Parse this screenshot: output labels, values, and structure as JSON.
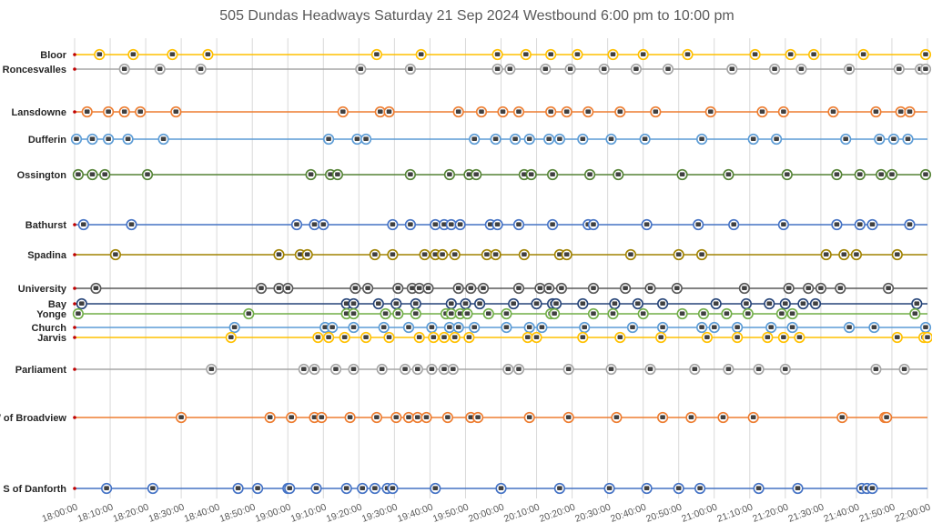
{
  "chart_data": {
    "type": "scatter",
    "title": "505 Dundas Headways Saturday 21 Sep 2024 Westbound 6:00 pm to 10:00 pm",
    "xlabel": "",
    "ylabel": "",
    "x_range": [
      "18:00:00",
      "22:00:00"
    ],
    "x_ticks": [
      "18:00:00",
      "18:10:00",
      "18:20:00",
      "18:30:00",
      "18:40:00",
      "18:50:00",
      "19:00:00",
      "19:10:00",
      "19:20:00",
      "19:30:00",
      "19:40:00",
      "19:50:00",
      "20:00:00",
      "20:10:00",
      "20:20:00",
      "20:30:00",
      "20:40:00",
      "20:50:00",
      "21:00:00",
      "21:10:00",
      "21:20:00",
      "21:30:00",
      "21:40:00",
      "21:50:00",
      "22:00:00"
    ],
    "grid": "vertical",
    "legend": "none",
    "series": [
      {
        "name": "Bloor",
        "color": "#ffc000",
        "times": [
          "18:07:00",
          "18:16:30",
          "18:27:30",
          "18:37:30",
          "19:25:00",
          "19:37:30",
          "19:59:00",
          "20:07:00",
          "20:14:00",
          "20:21:30",
          "20:31:30",
          "20:40:00",
          "20:52:30",
          "21:11:30",
          "21:21:30",
          "21:28:00",
          "21:42:00",
          "21:59:30"
        ]
      },
      {
        "name": "E of Roncesvalles",
        "color": "#a5a5a5",
        "times": [
          "18:14:00",
          "18:24:00",
          "18:35:30",
          "19:20:30",
          "19:34:30",
          "19:59:00",
          "20:02:30",
          "20:12:30",
          "20:19:30",
          "20:29:00",
          "20:38:00",
          "20:47:00",
          "21:05:00",
          "21:17:00",
          "21:24:30",
          "21:38:00",
          "21:52:00",
          "21:58:00",
          "21:59:30"
        ]
      },
      {
        "name": "Lansdowne",
        "color": "#ed7d31",
        "times": [
          "18:03:30",
          "18:09:30",
          "18:14:00",
          "18:18:30",
          "18:28:30",
          "19:15:30",
          "19:26:00",
          "19:28:30",
          "19:48:00",
          "19:54:30",
          "20:00:30",
          "20:05:00",
          "20:14:00",
          "20:18:30",
          "20:24:30",
          "20:33:30",
          "20:43:30",
          "20:59:00",
          "21:13:30",
          "21:19:30",
          "21:33:30",
          "21:45:30",
          "21:52:30",
          "21:55:00"
        ]
      },
      {
        "name": "Dufferin",
        "color": "#5b9bd5",
        "times": [
          "18:00:30",
          "18:05:00",
          "18:09:30",
          "18:15:00",
          "18:25:00",
          "19:11:30",
          "19:19:30",
          "19:22:00",
          "19:52:30",
          "19:58:30",
          "20:04:00",
          "20:08:00",
          "20:13:30",
          "20:16:30",
          "20:23:00",
          "20:31:00",
          "20:40:30",
          "20:56:30",
          "21:11:00",
          "21:17:30",
          "21:37:00",
          "21:46:30",
          "21:50:30",
          "21:54:30"
        ]
      },
      {
        "name": "Ossington",
        "color": "#548235",
        "times": [
          "18:01:00",
          "18:05:00",
          "18:08:30",
          "18:20:30",
          "19:06:30",
          "19:12:00",
          "19:14:00",
          "19:34:30",
          "19:45:30",
          "19:51:00",
          "19:53:00",
          "20:06:30",
          "20:08:30",
          "20:14:30",
          "20:25:00",
          "20:33:00",
          "20:51:00",
          "21:04:00",
          "21:20:30",
          "21:34:30",
          "21:41:00",
          "21:47:00",
          "21:50:00",
          "21:59:30"
        ]
      },
      {
        "name": "Bathurst",
        "color": "#4472c4",
        "times": [
          "18:02:30",
          "18:16:00",
          "19:02:30",
          "19:07:30",
          "19:10:00",
          "19:29:30",
          "19:34:30",
          "19:41:30",
          "19:44:00",
          "19:46:00",
          "19:48:30",
          "19:57:00",
          "19:59:00",
          "20:05:00",
          "20:14:30",
          "20:24:30",
          "20:26:00",
          "20:41:00",
          "20:55:30",
          "21:05:30",
          "21:19:30",
          "21:34:30",
          "21:41:00",
          "21:44:30",
          "21:55:00"
        ]
      },
      {
        "name": "Spadina",
        "color": "#a08200",
        "times": [
          "18:11:30",
          "18:57:30",
          "19:03:30",
          "19:05:30",
          "19:24:30",
          "19:29:30",
          "19:38:30",
          "19:41:30",
          "19:43:30",
          "19:47:00",
          "19:56:00",
          "19:58:30",
          "20:06:30",
          "20:16:30",
          "20:18:30",
          "20:36:30",
          "20:50:00",
          "20:56:30",
          "21:31:30",
          "21:36:30",
          "21:40:00",
          "21:51:30"
        ]
      },
      {
        "name": "University",
        "color": "#595959",
        "times": [
          "18:06:00",
          "18:52:30",
          "18:57:30",
          "19:00:00",
          "19:19:00",
          "19:22:30",
          "19:31:00",
          "19:35:00",
          "19:37:00",
          "19:39:30",
          "19:48:00",
          "19:51:30",
          "19:55:00",
          "20:05:00",
          "20:11:00",
          "20:13:30",
          "20:17:00",
          "20:26:00",
          "20:35:00",
          "20:42:00",
          "20:49:30",
          "21:08:30",
          "21:21:00",
          "21:26:30",
          "21:30:00",
          "21:35:30",
          "21:49:00"
        ]
      },
      {
        "name": "Bay",
        "color": "#264478",
        "times": [
          "18:02:00",
          "19:16:30",
          "19:18:30",
          "19:25:30",
          "19:30:30",
          "19:36:00",
          "19:46:00",
          "19:50:00",
          "19:54:00",
          "20:03:30",
          "20:10:00",
          "20:14:30",
          "20:15:30",
          "20:23:00",
          "20:32:00",
          "20:38:30",
          "20:45:30",
          "21:00:30",
          "21:09:00",
          "21:15:30",
          "21:20:00",
          "21:25:00",
          "21:28:30",
          "21:57:00"
        ]
      },
      {
        "name": "Yonge",
        "color": "#70ad47",
        "times": [
          "18:01:00",
          "18:49:00",
          "19:16:30",
          "19:18:30",
          "19:27:30",
          "19:31:00",
          "19:36:00",
          "19:44:30",
          "19:46:00",
          "19:48:30",
          "19:50:30",
          "19:56:30",
          "20:01:30",
          "20:14:00",
          "20:15:00",
          "20:26:00",
          "20:31:30",
          "20:40:00",
          "20:51:00",
          "20:57:00",
          "21:03:30",
          "21:09:30",
          "21:19:00",
          "21:22:00",
          "21:56:30"
        ]
      },
      {
        "name": "Church",
        "color": "#5b9bd5",
        "times": [
          "18:45:00",
          "19:10:30",
          "19:12:30",
          "19:18:30",
          "19:27:00",
          "19:34:00",
          "19:40:30",
          "19:45:30",
          "19:48:00",
          "19:52:30",
          "20:01:30",
          "20:08:00",
          "20:11:30",
          "20:23:30",
          "20:37:00",
          "20:45:30",
          "20:56:30",
          "21:00:00",
          "21:06:30",
          "21:16:00",
          "21:22:00",
          "21:38:00",
          "21:45:00",
          "21:59:30"
        ]
      },
      {
        "name": "Jarvis",
        "color": "#ffc000",
        "times": [
          "18:44:00",
          "19:08:30",
          "19:11:30",
          "19:16:00",
          "19:22:00",
          "19:28:30",
          "19:37:00",
          "19:41:00",
          "19:44:00",
          "19:47:00",
          "19:51:00",
          "20:07:30",
          "20:10:00",
          "20:23:00",
          "20:33:30",
          "20:45:00",
          "20:58:00",
          "21:06:30",
          "21:15:00",
          "21:19:30",
          "21:24:00",
          "21:51:30",
          "21:59:00",
          "22:00:00"
        ]
      },
      {
        "name": "Parliament",
        "color": "#a5a5a5",
        "times": [
          "18:38:30",
          "19:04:30",
          "19:07:30",
          "19:13:30",
          "19:18:30",
          "19:26:30",
          "19:33:00",
          "19:36:30",
          "19:40:30",
          "19:44:00",
          "19:46:30",
          "20:02:00",
          "20:05:00",
          "20:19:00",
          "20:31:00",
          "20:42:00",
          "20:54:30",
          "21:04:00",
          "21:12:30",
          "21:20:00",
          "21:45:30",
          "21:53:30"
        ]
      },
      {
        "name": "W of Broadview",
        "color": "#ed7d31",
        "times": [
          "18:30:00",
          "18:55:00",
          "19:01:00",
          "19:07:30",
          "19:09:30",
          "19:17:30",
          "19:25:00",
          "19:30:30",
          "19:34:00",
          "19:36:30",
          "19:39:00",
          "19:45:00",
          "19:51:30",
          "19:53:30",
          "20:08:00",
          "20:19:00",
          "20:32:30",
          "20:45:30",
          "20:53:30",
          "21:02:30",
          "21:11:00",
          "21:36:00",
          "21:48:00",
          "21:48:30"
        ]
      },
      {
        "name": "S of Danforth",
        "color": "#4472c4",
        "times": [
          "18:09:00",
          "18:22:00",
          "18:46:00",
          "18:51:30",
          "19:00:00",
          "19:00:30",
          "19:08:00",
          "19:16:30",
          "19:21:00",
          "19:24:30",
          "19:28:00",
          "19:29:30",
          "19:41:30",
          "20:00:00",
          "20:16:30",
          "20:30:30",
          "20:41:00",
          "20:50:00",
          "20:56:00",
          "21:12:30",
          "21:23:30",
          "21:41:30",
          "21:43:00",
          "21:44:30"
        ]
      }
    ]
  }
}
